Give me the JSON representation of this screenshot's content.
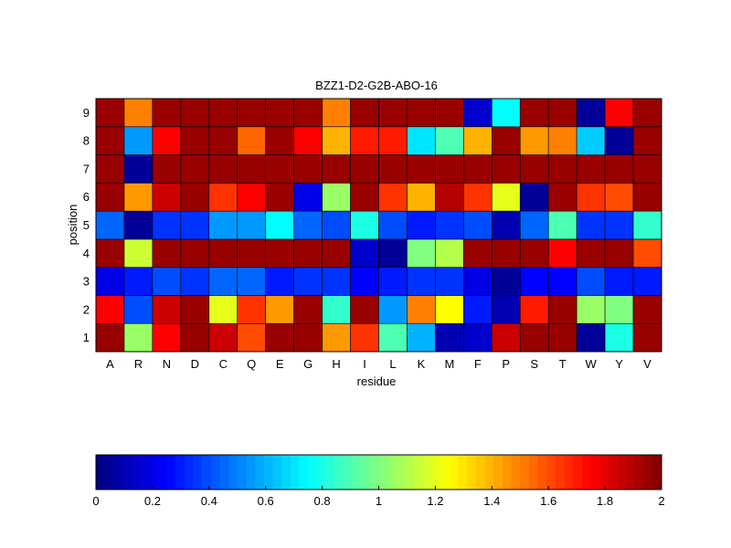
{
  "chart_data": {
    "type": "heatmap",
    "title": "BZZ1-D2-G2B-ABO-16",
    "xlabel": "residue",
    "ylabel": "position",
    "x_categories": [
      "A",
      "R",
      "N",
      "D",
      "C",
      "Q",
      "E",
      "G",
      "H",
      "I",
      "L",
      "K",
      "M",
      "F",
      "P",
      "S",
      "T",
      "W",
      "Y",
      "V"
    ],
    "y_categories": [
      "1",
      "2",
      "3",
      "4",
      "5",
      "6",
      "7",
      "8",
      "9"
    ],
    "value_range": [
      0,
      2
    ],
    "colormap": "jet",
    "colorbar": {
      "placement": "bottom",
      "ticks": [
        "0",
        "0.2",
        "0.4",
        "0.6",
        "0.8",
        "1",
        "1.2",
        "1.4",
        "1.6",
        "1.8",
        "2"
      ]
    },
    "values": [
      [
        1.95,
        1.05,
        1.75,
        1.95,
        1.85,
        1.6,
        1.95,
        1.95,
        1.45,
        1.65,
        0.9,
        0.6,
        0.1,
        0.15,
        1.85,
        1.95,
        1.95,
        0.05,
        0.8,
        1.95
      ],
      [
        1.75,
        0.4,
        1.85,
        1.95,
        1.2,
        1.65,
        1.45,
        1.95,
        0.85,
        1.95,
        0.55,
        1.5,
        1.25,
        0.3,
        0.1,
        1.7,
        1.95,
        1.05,
        1.0,
        1.95
      ],
      [
        0.2,
        0.3,
        0.4,
        0.35,
        0.45,
        0.45,
        0.3,
        0.35,
        0.35,
        0.25,
        0.3,
        0.35,
        0.35,
        0.2,
        0.05,
        0.25,
        0.25,
        0.4,
        0.3,
        0.3
      ],
      [
        1.95,
        1.15,
        1.95,
        1.95,
        1.95,
        1.95,
        1.95,
        1.95,
        1.95,
        0.15,
        0.05,
        1.0,
        1.1,
        1.95,
        1.95,
        1.95,
        1.75,
        1.95,
        1.95,
        1.6
      ],
      [
        0.45,
        0.05,
        0.35,
        0.35,
        0.55,
        0.55,
        0.75,
        0.45,
        0.4,
        0.8,
        0.4,
        0.3,
        0.35,
        0.4,
        0.1,
        0.45,
        0.9,
        0.35,
        0.35,
        0.85
      ],
      [
        1.95,
        1.45,
        1.85,
        1.95,
        1.65,
        1.75,
        1.95,
        0.2,
        1.05,
        1.95,
        1.65,
        1.4,
        1.9,
        1.65,
        1.2,
        0.05,
        1.95,
        1.65,
        1.6,
        1.95
      ],
      [
        1.95,
        0.05,
        1.95,
        1.95,
        1.95,
        1.95,
        1.95,
        1.95,
        1.95,
        1.95,
        1.95,
        1.95,
        1.95,
        1.95,
        1.95,
        1.95,
        1.95,
        1.95,
        1.95,
        1.95
      ],
      [
        1.95,
        0.55,
        1.75,
        1.95,
        1.95,
        1.55,
        1.95,
        1.75,
        1.4,
        1.7,
        1.7,
        0.7,
        0.9,
        1.4,
        1.95,
        1.45,
        1.5,
        0.65,
        0.05,
        1.95
      ],
      [
        1.95,
        1.5,
        1.95,
        1.95,
        1.95,
        1.95,
        1.95,
        1.95,
        1.5,
        1.95,
        1.95,
        1.95,
        1.95,
        0.15,
        0.75,
        1.95,
        1.95,
        0.05,
        1.75,
        1.95
      ]
    ]
  }
}
